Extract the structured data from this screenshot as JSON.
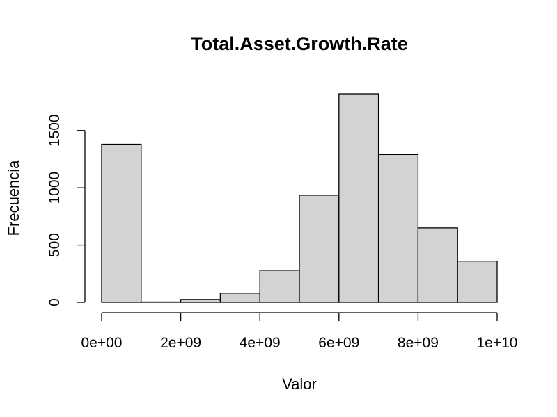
{
  "chart_data": {
    "type": "bar",
    "subtype": "histogram",
    "title": "Total.Asset.Growth.Rate",
    "xlabel": "Valor",
    "ylabel": "Frecuencia",
    "bins": [
      {
        "x0": 0,
        "x1": 1000000000,
        "count": 1380
      },
      {
        "x0": 1000000000,
        "x1": 2000000000,
        "count": 3
      },
      {
        "x0": 2000000000,
        "x1": 3000000000,
        "count": 25
      },
      {
        "x0": 3000000000,
        "x1": 4000000000,
        "count": 80
      },
      {
        "x0": 4000000000,
        "x1": 5000000000,
        "count": 280
      },
      {
        "x0": 5000000000,
        "x1": 6000000000,
        "count": 935
      },
      {
        "x0": 6000000000,
        "x1": 7000000000,
        "count": 1820
      },
      {
        "x0": 7000000000,
        "x1": 8000000000,
        "count": 1290
      },
      {
        "x0": 8000000000,
        "x1": 9000000000,
        "count": 650
      },
      {
        "x0": 9000000000,
        "x1": 10000000000,
        "count": 360
      }
    ],
    "xlim": [
      0,
      10000000000
    ],
    "ylim": [
      0,
      1820
    ],
    "x_ticks": [
      {
        "value": 0,
        "label": "0e+00"
      },
      {
        "value": 2000000000,
        "label": "2e+09"
      },
      {
        "value": 4000000000,
        "label": "4e+09"
      },
      {
        "value": 6000000000,
        "label": "6e+09"
      },
      {
        "value": 8000000000,
        "label": "8e+09"
      },
      {
        "value": 10000000000,
        "label": "1e+10"
      }
    ],
    "y_ticks": [
      {
        "value": 0,
        "label": "0"
      },
      {
        "value": 500,
        "label": "500"
      },
      {
        "value": 1000,
        "label": "1000"
      },
      {
        "value": 1500,
        "label": "1500"
      }
    ],
    "bar_fill": "#d3d3d3",
    "bar_stroke": "#000000",
    "grid": false,
    "legend": "none"
  }
}
